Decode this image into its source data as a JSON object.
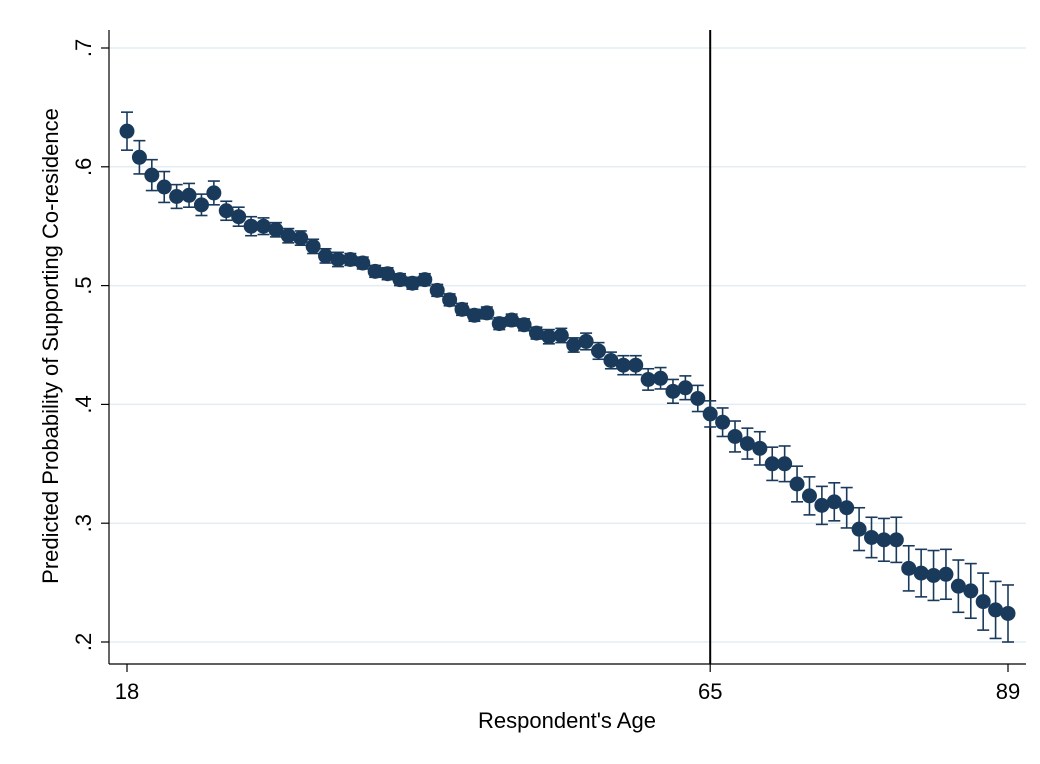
{
  "chart_data": {
    "type": "scatter",
    "xlabel": "Respondent's Age",
    "ylabel": "Predicted Probability of Supporting Co-residence",
    "xlim": [
      17.6,
      89.5
    ],
    "ylim": [
      0.2,
      0.7
    ],
    "xticks": [
      18,
      65,
      89
    ],
    "xtick_labels": [
      "18",
      "65",
      "89"
    ],
    "yticks": [
      0.2,
      0.3,
      0.4,
      0.5,
      0.6,
      0.7
    ],
    "ytick_labels": [
      ".2",
      ".3",
      ".4",
      ".5",
      ".6",
      ".7"
    ],
    "grid": "horizontal",
    "reference_line_x": 65,
    "colors": {
      "marker": "#1a3a5c",
      "grid": "#e4edf2",
      "axis": "#000000"
    },
    "series": [
      {
        "x": [
          18,
          19,
          20,
          21,
          22,
          23,
          24,
          25,
          26,
          27,
          28,
          29,
          30,
          31,
          32,
          33,
          34,
          35,
          36,
          37,
          38,
          39,
          40,
          41,
          42,
          43,
          44,
          45,
          46,
          47,
          48,
          49,
          50,
          51,
          52,
          53,
          54,
          55,
          56,
          57,
          58,
          59,
          60,
          61,
          62,
          63,
          64,
          65,
          66,
          67,
          68,
          69,
          70,
          71,
          72,
          73,
          74,
          75,
          76,
          77,
          78,
          79,
          80,
          81,
          82,
          83,
          84,
          85,
          86,
          87,
          88,
          89
        ],
        "y": [
          0.63,
          0.608,
          0.593,
          0.583,
          0.575,
          0.576,
          0.568,
          0.578,
          0.563,
          0.558,
          0.55,
          0.55,
          0.547,
          0.542,
          0.54,
          0.533,
          0.525,
          0.522,
          0.522,
          0.519,
          0.512,
          0.51,
          0.505,
          0.502,
          0.505,
          0.496,
          0.488,
          0.48,
          0.475,
          0.477,
          0.468,
          0.471,
          0.467,
          0.46,
          0.457,
          0.458,
          0.45,
          0.453,
          0.445,
          0.437,
          0.433,
          0.433,
          0.421,
          0.422,
          0.411,
          0.414,
          0.405,
          0.392,
          0.385,
          0.373,
          0.367,
          0.363,
          0.35,
          0.35,
          0.333,
          0.323,
          0.315,
          0.318,
          0.313,
          0.295,
          0.288,
          0.286,
          0.286,
          0.262,
          0.258,
          0.256,
          0.257,
          0.247,
          0.243,
          0.234,
          0.227,
          0.224
        ],
        "lower": [
          0.614,
          0.594,
          0.58,
          0.57,
          0.565,
          0.566,
          0.559,
          0.568,
          0.555,
          0.55,
          0.542,
          0.543,
          0.541,
          0.536,
          0.534,
          0.527,
          0.519,
          0.516,
          0.517,
          0.514,
          0.507,
          0.505,
          0.5,
          0.497,
          0.5,
          0.491,
          0.483,
          0.475,
          0.47,
          0.472,
          0.463,
          0.466,
          0.462,
          0.455,
          0.451,
          0.452,
          0.444,
          0.446,
          0.438,
          0.43,
          0.425,
          0.425,
          0.412,
          0.413,
          0.401,
          0.404,
          0.394,
          0.381,
          0.373,
          0.36,
          0.354,
          0.349,
          0.336,
          0.335,
          0.318,
          0.307,
          0.299,
          0.302,
          0.296,
          0.277,
          0.271,
          0.268,
          0.267,
          0.243,
          0.238,
          0.235,
          0.236,
          0.225,
          0.22,
          0.21,
          0.203,
          0.2
        ],
        "upper": [
          0.646,
          0.622,
          0.606,
          0.596,
          0.585,
          0.586,
          0.577,
          0.588,
          0.571,
          0.566,
          0.558,
          0.557,
          0.553,
          0.548,
          0.546,
          0.539,
          0.531,
          0.528,
          0.527,
          0.524,
          0.517,
          0.515,
          0.51,
          0.507,
          0.51,
          0.501,
          0.493,
          0.485,
          0.48,
          0.482,
          0.473,
          0.476,
          0.472,
          0.465,
          0.463,
          0.464,
          0.456,
          0.46,
          0.452,
          0.444,
          0.441,
          0.441,
          0.43,
          0.431,
          0.421,
          0.424,
          0.416,
          0.403,
          0.397,
          0.386,
          0.38,
          0.377,
          0.364,
          0.365,
          0.348,
          0.339,
          0.331,
          0.334,
          0.33,
          0.313,
          0.305,
          0.304,
          0.305,
          0.281,
          0.278,
          0.277,
          0.278,
          0.269,
          0.266,
          0.258,
          0.251,
          0.248
        ]
      }
    ]
  }
}
